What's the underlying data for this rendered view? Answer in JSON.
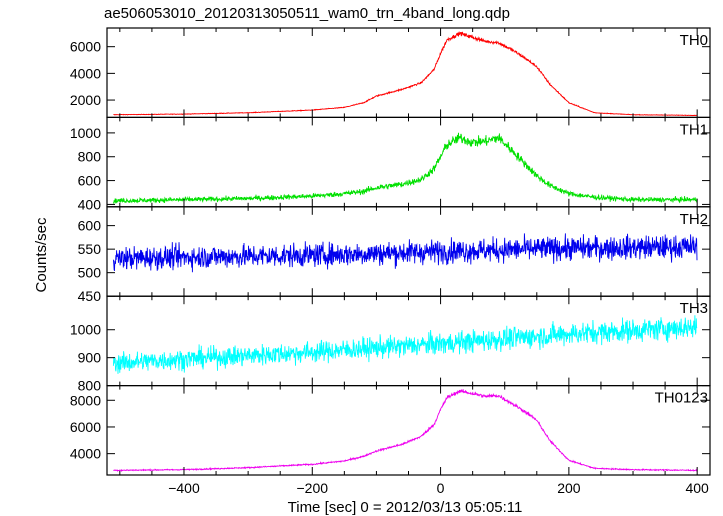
{
  "chart_data": {
    "type": "line",
    "title": "ae506053010_20120313050511_wam0_trn_4band_long.qdp",
    "xlabel": "Time [sec] 0 = 2012/03/13 05:05:11",
    "ylabel": "Counts/sec",
    "xlim": [
      -520,
      420
    ],
    "xticks": [
      -400,
      -200,
      0,
      200,
      400
    ],
    "grid": false,
    "panels": [
      {
        "name": "TH0",
        "color": "#ff0000",
        "ylim": [
          700,
          7400
        ],
        "yticks": [
          2000,
          4000,
          6000
        ],
        "noise": 0.02,
        "x": [
          -510,
          -400,
          -300,
          -200,
          -150,
          -120,
          -100,
          -60,
          -30,
          -10,
          0,
          10,
          30,
          50,
          70,
          90,
          110,
          130,
          150,
          170,
          200,
          240,
          300,
          400
        ],
        "y": [
          900,
          950,
          1050,
          1250,
          1450,
          1800,
          2300,
          2800,
          3300,
          4300,
          5500,
          6500,
          7000,
          6700,
          6400,
          6300,
          5800,
          5200,
          4500,
          3200,
          1800,
          1050,
          900,
          850
        ]
      },
      {
        "name": "TH1",
        "color": "#00e000",
        "ylim": [
          380,
          1130
        ],
        "yticks": [
          400,
          600,
          800,
          1000
        ],
        "noise": 0.045,
        "x": [
          -510,
          -400,
          -300,
          -200,
          -150,
          -120,
          -100,
          -60,
          -30,
          -10,
          0,
          10,
          30,
          50,
          70,
          90,
          110,
          130,
          150,
          170,
          200,
          240,
          300,
          400
        ],
        "y": [
          430,
          440,
          450,
          470,
          490,
          510,
          540,
          570,
          610,
          700,
          800,
          900,
          960,
          920,
          930,
          960,
          860,
          750,
          640,
          560,
          490,
          460,
          440,
          440
        ]
      },
      {
        "name": "TH2",
        "color": "#0000ee",
        "ylim": [
          450,
          640
        ],
        "yticks": [
          450,
          500,
          550,
          600
        ],
        "noise": 0.045,
        "x": [
          -510,
          -400,
          -200,
          0,
          200,
          400
        ],
        "y": [
          530,
          533,
          537,
          545,
          552,
          555
        ]
      },
      {
        "name": "TH3",
        "color": "#00ffff",
        "ylim": [
          800,
          1120
        ],
        "yticks": [
          800,
          900,
          1000
        ],
        "noise": 0.04,
        "x": [
          -510,
          -400,
          -200,
          0,
          200,
          400
        ],
        "y": [
          880,
          895,
          920,
          950,
          985,
          1010
        ]
      },
      {
        "name": "TH0123",
        "color": "#ee00ee",
        "ylim": [
          2400,
          9100
        ],
        "yticks": [
          4000,
          6000,
          8000
        ],
        "noise": 0.015,
        "x": [
          -510,
          -400,
          -300,
          -200,
          -150,
          -120,
          -100,
          -60,
          -30,
          -10,
          0,
          10,
          30,
          50,
          70,
          90,
          110,
          130,
          150,
          170,
          200,
          240,
          300,
          400
        ],
        "y": [
          2750,
          2800,
          2950,
          3200,
          3450,
          3800,
          4200,
          4700,
          5300,
          6200,
          7300,
          8200,
          8700,
          8500,
          8300,
          8350,
          7800,
          7200,
          6500,
          5000,
          3500,
          2900,
          2800,
          2750
        ]
      }
    ]
  }
}
